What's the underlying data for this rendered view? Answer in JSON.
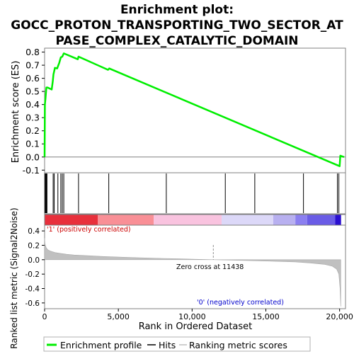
{
  "title_line1": "Enrichment plot:",
  "title_line2": "GOCC_PROTON_TRANSPORTING_TWO_SECTOR_AT",
  "title_line3": "PASE_COMPLEX_CATALYTIC_DOMAIN",
  "colors": {
    "es_line": "#00ee00",
    "hit_line": "#000000",
    "metric_fill": "#c0c0c0",
    "frame": "#808080",
    "pos_label": "#cc0000",
    "neg_label": "#0000cc"
  },
  "chart_data": [
    {
      "type": "line",
      "name": "enrichment-profile",
      "ylabel": "Enrichment score (ES)",
      "ylim": [
        -0.12,
        0.83
      ],
      "xlim": [
        0,
        20400
      ],
      "yticks": [
        -0.1,
        0.0,
        0.1,
        0.2,
        0.3,
        0.4,
        0.5,
        0.6,
        0.7,
        0.8
      ],
      "ytick_labels": [
        "-0.1",
        "0.0",
        "0.1",
        "0.2",
        "0.3",
        "0.4",
        "0.5",
        "0.6",
        "0.7",
        "0.8"
      ],
      "series": [
        {
          "name": "Enrichment profile",
          "x": [
            0,
            20,
            60,
            120,
            200,
            480,
            550,
            600,
            700,
            850,
            1000,
            1100,
            1200,
            1300,
            2250,
            2300,
            4300,
            4380,
            20000,
            20050,
            20300
          ],
          "y": [
            0.0,
            0.4,
            0.45,
            0.53,
            0.53,
            0.515,
            0.575,
            0.63,
            0.68,
            0.675,
            0.72,
            0.76,
            0.765,
            0.79,
            0.745,
            0.765,
            0.665,
            0.675,
            -0.07,
            0.01,
            0.0
          ]
        }
      ]
    },
    {
      "type": "line",
      "name": "hits",
      "hits_x": [
        20,
        70,
        120,
        160,
        580,
        650,
        900,
        1100,
        1200,
        1300,
        2300,
        4350,
        8250,
        12250,
        14250,
        17550,
        19850,
        19950
      ]
    },
    {
      "type": "heatmap",
      "name": "ranked-list-colorbar",
      "segments": [
        {
          "from": 0,
          "to": 3600,
          "color": "#e8303c"
        },
        {
          "from": 3600,
          "to": 7400,
          "color": "#f98f96"
        },
        {
          "from": 7400,
          "to": 12000,
          "color": "#f9c3df"
        },
        {
          "from": 12000,
          "to": 15500,
          "color": "#dcd8f8"
        },
        {
          "from": 15500,
          "to": 17000,
          "color": "#b8b0f0"
        },
        {
          "from": 17000,
          "to": 17800,
          "color": "#8b7ff0"
        },
        {
          "from": 17800,
          "to": 19700,
          "color": "#6a5ce6"
        },
        {
          "from": 19700,
          "to": 20100,
          "color": "#2a0fd0"
        }
      ]
    },
    {
      "type": "area",
      "name": "ranking-metric",
      "ylabel": "Ranked list metric (Signal2Noise)",
      "xlabel": "Rank in Ordered Dataset",
      "ylim": [
        -0.68,
        0.48
      ],
      "xlim": [
        0,
        20400
      ],
      "yticks": [
        -0.6,
        -0.4,
        -0.2,
        0.0,
        0.2,
        0.4
      ],
      "ytick_labels": [
        "-0.6",
        "-0.4",
        "-0.2",
        "0.0",
        "0.2",
        "0.4"
      ],
      "xticks": [
        0,
        5000,
        10000,
        15000,
        20000
      ],
      "xtick_labels": [
        "0",
        "5,000",
        "10,000",
        "15,000",
        "20,000"
      ],
      "x": [
        0,
        30,
        100,
        200,
        400,
        700,
        1000,
        1500,
        2000,
        3000,
        4000,
        5000,
        6000,
        8000,
        10000,
        11438,
        13000,
        15000,
        17000,
        18000,
        19000,
        19500,
        19800,
        19950,
        20030,
        20080
      ],
      "y": [
        0.3,
        0.22,
        0.17,
        0.14,
        0.12,
        0.1,
        0.09,
        0.075,
        0.065,
        0.055,
        0.045,
        0.038,
        0.03,
        0.018,
        0.008,
        0.0,
        -0.008,
        -0.018,
        -0.03,
        -0.045,
        -0.065,
        -0.09,
        -0.13,
        -0.2,
        -0.4,
        -0.65
      ],
      "zero_cross_label": "Zero cross at 11438",
      "zero_cross_x": 11438,
      "pos_label": "'1' (positively correlated)",
      "neg_label": "'0' (negatively correlated)"
    }
  ],
  "legend": {
    "position": "bottom",
    "items": [
      {
        "label": "Enrichment profile",
        "color": "#00ee00"
      },
      {
        "label": "Hits",
        "color": "#000000"
      },
      {
        "label": "Ranking metric scores",
        "color": "#c0c0c0"
      }
    ]
  }
}
